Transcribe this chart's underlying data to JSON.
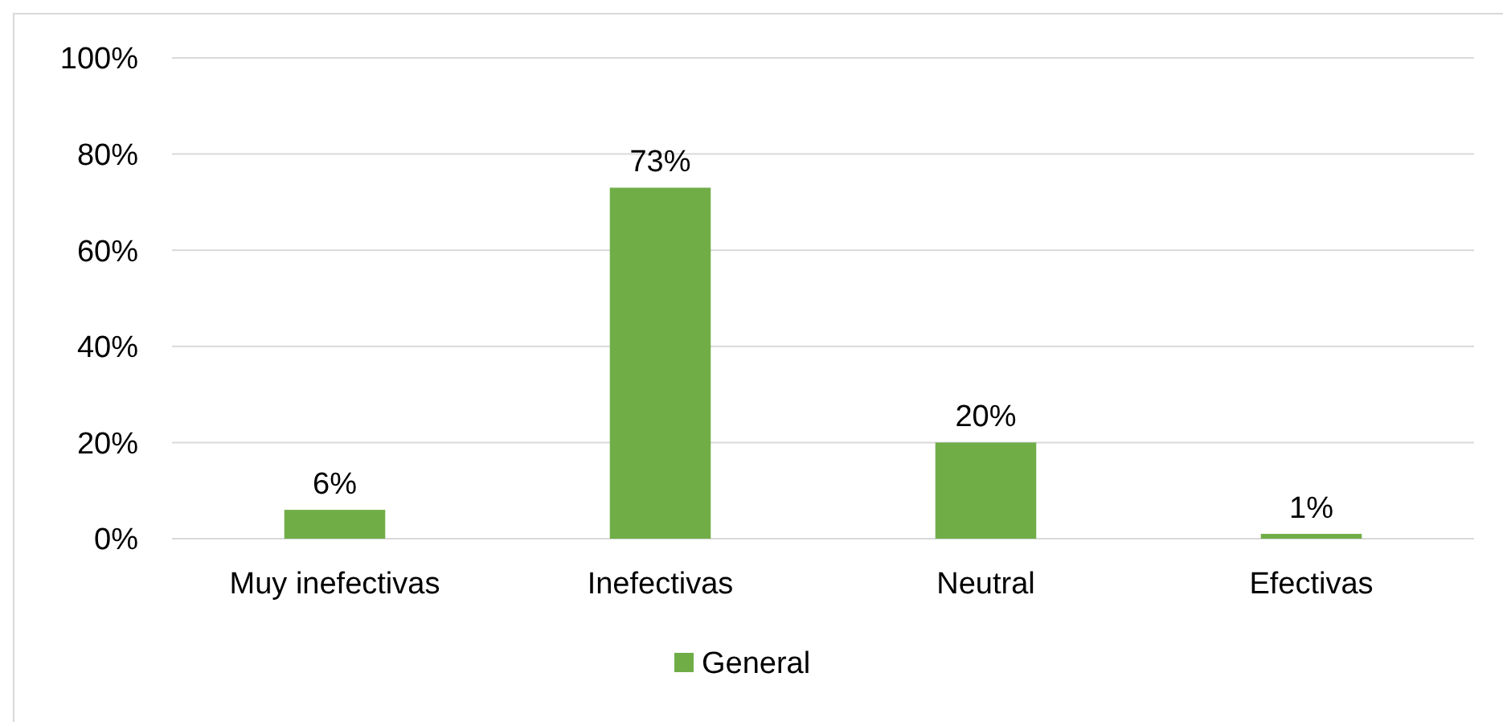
{
  "chart_data": {
    "type": "bar",
    "categories": [
      "Muy inefectivas",
      "Inefectivas",
      "Neutral",
      "Efectivas"
    ],
    "series": [
      {
        "name": "General",
        "color": "#70ad47",
        "values": [
          6,
          73,
          20,
          1
        ],
        "value_labels": [
          "6%",
          "73%",
          "20%",
          "1%"
        ]
      }
    ],
    "ylim": [
      0,
      100
    ],
    "yticks": [
      {
        "value": 0,
        "label": "0%"
      },
      {
        "value": 20,
        "label": "20%"
      },
      {
        "value": 40,
        "label": "40%"
      },
      {
        "value": 60,
        "label": "60%"
      },
      {
        "value": 80,
        "label": "80%"
      },
      {
        "value": 100,
        "label": "100%"
      }
    ],
    "grid": "y",
    "legend": "bottom"
  }
}
